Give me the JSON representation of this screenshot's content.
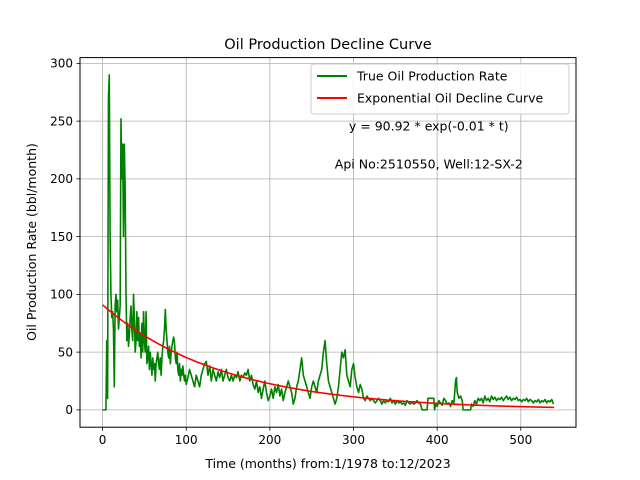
{
  "chart_data": {
    "type": "line",
    "title": "Oil Production Decline Curve",
    "xlabel": "Time (months) from:1/1978 to:12/2023",
    "ylabel": "Oil Production Rate (bbl/month)",
    "xlim": [
      -27,
      566
    ],
    "ylim": [
      -15,
      305
    ],
    "xticks": [
      0,
      100,
      200,
      300,
      400,
      500
    ],
    "yticks": [
      0,
      50,
      100,
      150,
      200,
      250,
      300
    ],
    "grid": true,
    "legend_position": "top-right",
    "annotations": [
      {
        "text": "y = 90.92 * exp(-0.01 * t)",
        "x": 390,
        "y": 242
      },
      {
        "text": "Api No:2510550, Well:12-SX-2",
        "x": 390,
        "y": 209
      }
    ],
    "series": [
      {
        "name": "True Oil Production Rate",
        "color": "#008000",
        "kind": "line",
        "points": [
          [
            0,
            0
          ],
          [
            4,
            0
          ],
          [
            5,
            60
          ],
          [
            6,
            10
          ],
          [
            7,
            270
          ],
          [
            8,
            290
          ],
          [
            9,
            150
          ],
          [
            10,
            100
          ],
          [
            11,
            80
          ],
          [
            12,
            85
          ],
          [
            13,
            70
          ],
          [
            14,
            20
          ],
          [
            15,
            90
          ],
          [
            16,
            100
          ],
          [
            17,
            85
          ],
          [
            18,
            95
          ],
          [
            19,
            70
          ],
          [
            20,
            80
          ],
          [
            21,
            90
          ],
          [
            22,
            252
          ],
          [
            23,
            200
          ],
          [
            24,
            230
          ],
          [
            25,
            150
          ],
          [
            26,
            230
          ],
          [
            27,
            190
          ],
          [
            28,
            100
          ],
          [
            29,
            60
          ],
          [
            30,
            75
          ],
          [
            31,
            55
          ],
          [
            32,
            65
          ],
          [
            33,
            80
          ],
          [
            34,
            90
          ],
          [
            35,
            70
          ],
          [
            36,
            60
          ],
          [
            37,
            100
          ],
          [
            38,
            80
          ],
          [
            39,
            50
          ],
          [
            40,
            60
          ],
          [
            41,
            85
          ],
          [
            42,
            60
          ],
          [
            43,
            80
          ],
          [
            44,
            55
          ],
          [
            45,
            65
          ],
          [
            46,
            45
          ],
          [
            47,
            75
          ],
          [
            48,
            50
          ],
          [
            49,
            85
          ],
          [
            50,
            60
          ],
          [
            51,
            50
          ],
          [
            52,
            85
          ],
          [
            53,
            40
          ],
          [
            54,
            45
          ],
          [
            55,
            55
          ],
          [
            56,
            35
          ],
          [
            57,
            50
          ],
          [
            58,
            40
          ],
          [
            59,
            30
          ],
          [
            60,
            45
          ],
          [
            61,
            35
          ],
          [
            62,
            40
          ],
          [
            63,
            25
          ],
          [
            64,
            40
          ],
          [
            65,
            45
          ],
          [
            66,
            50
          ],
          [
            67,
            40
          ],
          [
            68,
            35
          ],
          [
            69,
            45
          ],
          [
            70,
            30
          ],
          [
            71,
            45
          ],
          [
            72,
            55
          ],
          [
            73,
            60
          ],
          [
            74,
            70
          ],
          [
            75,
            87
          ],
          [
            76,
            70
          ],
          [
            77,
            60
          ],
          [
            78,
            50
          ],
          [
            79,
            45
          ],
          [
            80,
            55
          ],
          [
            81,
            40
          ],
          [
            82,
            50
          ],
          [
            83,
            55
          ],
          [
            84,
            60
          ],
          [
            85,
            63
          ],
          [
            86,
            58
          ],
          [
            87,
            45
          ],
          [
            88,
            40
          ],
          [
            89,
            50
          ],
          [
            90,
            35
          ],
          [
            91,
            30
          ],
          [
            92,
            40
          ],
          [
            93,
            25
          ],
          [
            94,
            35
          ],
          [
            95,
            30
          ],
          [
            96,
            38
          ],
          [
            97,
            30
          ],
          [
            98,
            25
          ],
          [
            99,
            30
          ],
          [
            100,
            22
          ],
          [
            102,
            28
          ],
          [
            104,
            35
          ],
          [
            106,
            30
          ],
          [
            108,
            25
          ],
          [
            110,
            20
          ],
          [
            112,
            30
          ],
          [
            114,
            25
          ],
          [
            116,
            20
          ],
          [
            118,
            30
          ],
          [
            120,
            35
          ],
          [
            122,
            40
          ],
          [
            124,
            42
          ],
          [
            126,
            30
          ],
          [
            128,
            38
          ],
          [
            130,
            25
          ],
          [
            132,
            35
          ],
          [
            134,
            30
          ],
          [
            136,
            25
          ],
          [
            138,
            33
          ],
          [
            140,
            28
          ],
          [
            142,
            35
          ],
          [
            144,
            25
          ],
          [
            146,
            30
          ],
          [
            148,
            35
          ],
          [
            150,
            28
          ],
          [
            152,
            25
          ],
          [
            154,
            30
          ],
          [
            156,
            25
          ],
          [
            158,
            30
          ],
          [
            160,
            28
          ],
          [
            162,
            33
          ],
          [
            164,
            25
          ],
          [
            166,
            30
          ],
          [
            168,
            28
          ],
          [
            170,
            32
          ],
          [
            172,
            30
          ],
          [
            174,
            35
          ],
          [
            176,
            25
          ],
          [
            178,
            30
          ],
          [
            180,
            22
          ],
          [
            182,
            18
          ],
          [
            184,
            25
          ],
          [
            186,
            15
          ],
          [
            188,
            20
          ],
          [
            190,
            10
          ],
          [
            192,
            18
          ],
          [
            194,
            25
          ],
          [
            196,
            15
          ],
          [
            198,
            8
          ],
          [
            200,
            12
          ],
          [
            202,
            18
          ],
          [
            204,
            10
          ],
          [
            206,
            20
          ],
          [
            208,
            15
          ],
          [
            210,
            22
          ],
          [
            212,
            12
          ],
          [
            214,
            18
          ],
          [
            216,
            8
          ],
          [
            218,
            15
          ],
          [
            220,
            20
          ],
          [
            222,
            25
          ],
          [
            224,
            20
          ],
          [
            226,
            15
          ],
          [
            228,
            5
          ],
          [
            230,
            10
          ],
          [
            232,
            20
          ],
          [
            234,
            25
          ],
          [
            236,
            35
          ],
          [
            238,
            45
          ],
          [
            240,
            30
          ],
          [
            242,
            25
          ],
          [
            244,
            20
          ],
          [
            246,
            15
          ],
          [
            248,
            10
          ],
          [
            250,
            20
          ],
          [
            252,
            25
          ],
          [
            254,
            20
          ],
          [
            256,
            15
          ],
          [
            258,
            25
          ],
          [
            260,
            30
          ],
          [
            262,
            35
          ],
          [
            264,
            50
          ],
          [
            266,
            60
          ],
          [
            268,
            40
          ],
          [
            270,
            25
          ],
          [
            272,
            20
          ],
          [
            274,
            15
          ],
          [
            276,
            10
          ],
          [
            278,
            5
          ],
          [
            280,
            10
          ],
          [
            282,
            20
          ],
          [
            284,
            35
          ],
          [
            286,
            50
          ],
          [
            288,
            45
          ],
          [
            290,
            52
          ],
          [
            292,
            30
          ],
          [
            294,
            25
          ],
          [
            296,
            20
          ],
          [
            298,
            35
          ],
          [
            300,
            40
          ],
          [
            302,
            28
          ],
          [
            304,
            20
          ],
          [
            306,
            15
          ],
          [
            308,
            22
          ],
          [
            310,
            18
          ],
          [
            312,
            10
          ],
          [
            314,
            8
          ],
          [
            316,
            12
          ],
          [
            318,
            10
          ],
          [
            320,
            8
          ],
          [
            322,
            10
          ],
          [
            324,
            8
          ],
          [
            326,
            6
          ],
          [
            328,
            8
          ],
          [
            330,
            10
          ],
          [
            332,
            8
          ],
          [
            334,
            5
          ],
          [
            336,
            8
          ],
          [
            338,
            6
          ],
          [
            340,
            8
          ],
          [
            342,
            7
          ],
          [
            344,
            10
          ],
          [
            346,
            6
          ],
          [
            348,
            8
          ],
          [
            350,
            5
          ],
          [
            352,
            8
          ],
          [
            354,
            6
          ],
          [
            356,
            7
          ],
          [
            358,
            5
          ],
          [
            360,
            6
          ],
          [
            362,
            4
          ],
          [
            364,
            8
          ],
          [
            366,
            6
          ],
          [
            368,
            5
          ],
          [
            370,
            7
          ],
          [
            372,
            5
          ],
          [
            374,
            6
          ],
          [
            376,
            8
          ],
          [
            378,
            6
          ],
          [
            380,
            5
          ],
          [
            382,
            0
          ],
          [
            384,
            0
          ],
          [
            386,
            0
          ],
          [
            388,
            0
          ],
          [
            389,
            10
          ],
          [
            396,
            10
          ],
          [
            397,
            0
          ],
          [
            398,
            5
          ],
          [
            400,
            3
          ],
          [
            402,
            8
          ],
          [
            404,
            6
          ],
          [
            406,
            4
          ],
          [
            408,
            10
          ],
          [
            410,
            8
          ],
          [
            412,
            5
          ],
          [
            414,
            6
          ],
          [
            416,
            3
          ],
          [
            418,
            8
          ],
          [
            420,
            6
          ],
          [
            421,
            15
          ],
          [
            422,
            25
          ],
          [
            423,
            28
          ],
          [
            424,
            15
          ],
          [
            426,
            10
          ],
          [
            428,
            12
          ],
          [
            430,
            8
          ],
          [
            431,
            0
          ],
          [
            434,
            0
          ],
          [
            437,
            0
          ],
          [
            440,
            0
          ],
          [
            441,
            5
          ],
          [
            443,
            3
          ],
          [
            445,
            8
          ],
          [
            447,
            5
          ],
          [
            449,
            10
          ],
          [
            451,
            8
          ],
          [
            453,
            10
          ],
          [
            455,
            6
          ],
          [
            457,
            12
          ],
          [
            459,
            8
          ],
          [
            461,
            10
          ],
          [
            463,
            7
          ],
          [
            465,
            12
          ],
          [
            467,
            9
          ],
          [
            469,
            11
          ],
          [
            471,
            8
          ],
          [
            473,
            10
          ],
          [
            475,
            9
          ],
          [
            477,
            11
          ],
          [
            479,
            8
          ],
          [
            481,
            10
          ],
          [
            483,
            12
          ],
          [
            485,
            9
          ],
          [
            487,
            11
          ],
          [
            489,
            8
          ],
          [
            491,
            10
          ],
          [
            493,
            9
          ],
          [
            495,
            11
          ],
          [
            497,
            8
          ],
          [
            499,
            9
          ],
          [
            501,
            7
          ],
          [
            503,
            9
          ],
          [
            505,
            8
          ],
          [
            507,
            10
          ],
          [
            509,
            7
          ],
          [
            511,
            9
          ],
          [
            513,
            8
          ],
          [
            515,
            6
          ],
          [
            517,
            8
          ],
          [
            519,
            7
          ],
          [
            521,
            9
          ],
          [
            523,
            6
          ],
          [
            525,
            8
          ],
          [
            527,
            7
          ],
          [
            529,
            9
          ],
          [
            531,
            6
          ],
          [
            533,
            8
          ],
          [
            535,
            7
          ],
          [
            537,
            9
          ],
          [
            539,
            5
          ]
        ]
      },
      {
        "name": "Exponential Oil Decline Curve",
        "color": "#ff0000",
        "kind": "function",
        "a": 90.92,
        "b": 0.00695,
        "x_range": [
          0,
          540
        ]
      }
    ]
  }
}
